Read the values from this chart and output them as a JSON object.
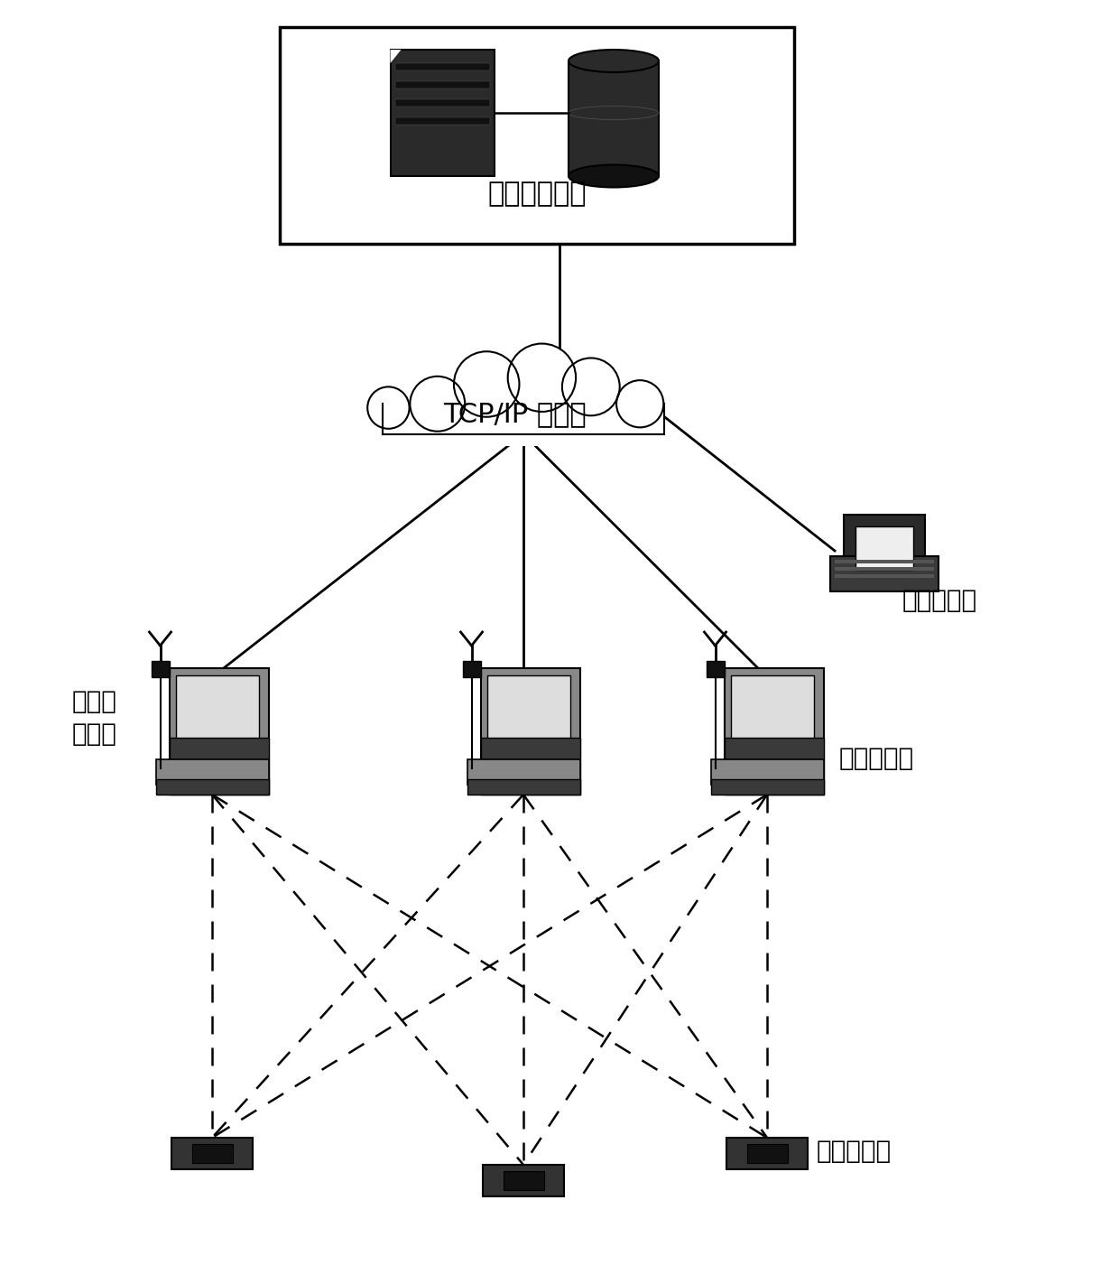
{
  "background_color": "#ffffff",
  "server_box_label": "服务器数据库",
  "cloud_label": "TCP/IP 网络，",
  "monitor_label": "信息显示机",
  "collector_label": "数据采集机",
  "wireless_label": "无线收\n发模块",
  "reader_label": "无线读卡器",
  "line_color": "#000000",
  "text_color": "#000000",
  "server_color": "#2a2a2a",
  "db_color": "#2a2a2a"
}
